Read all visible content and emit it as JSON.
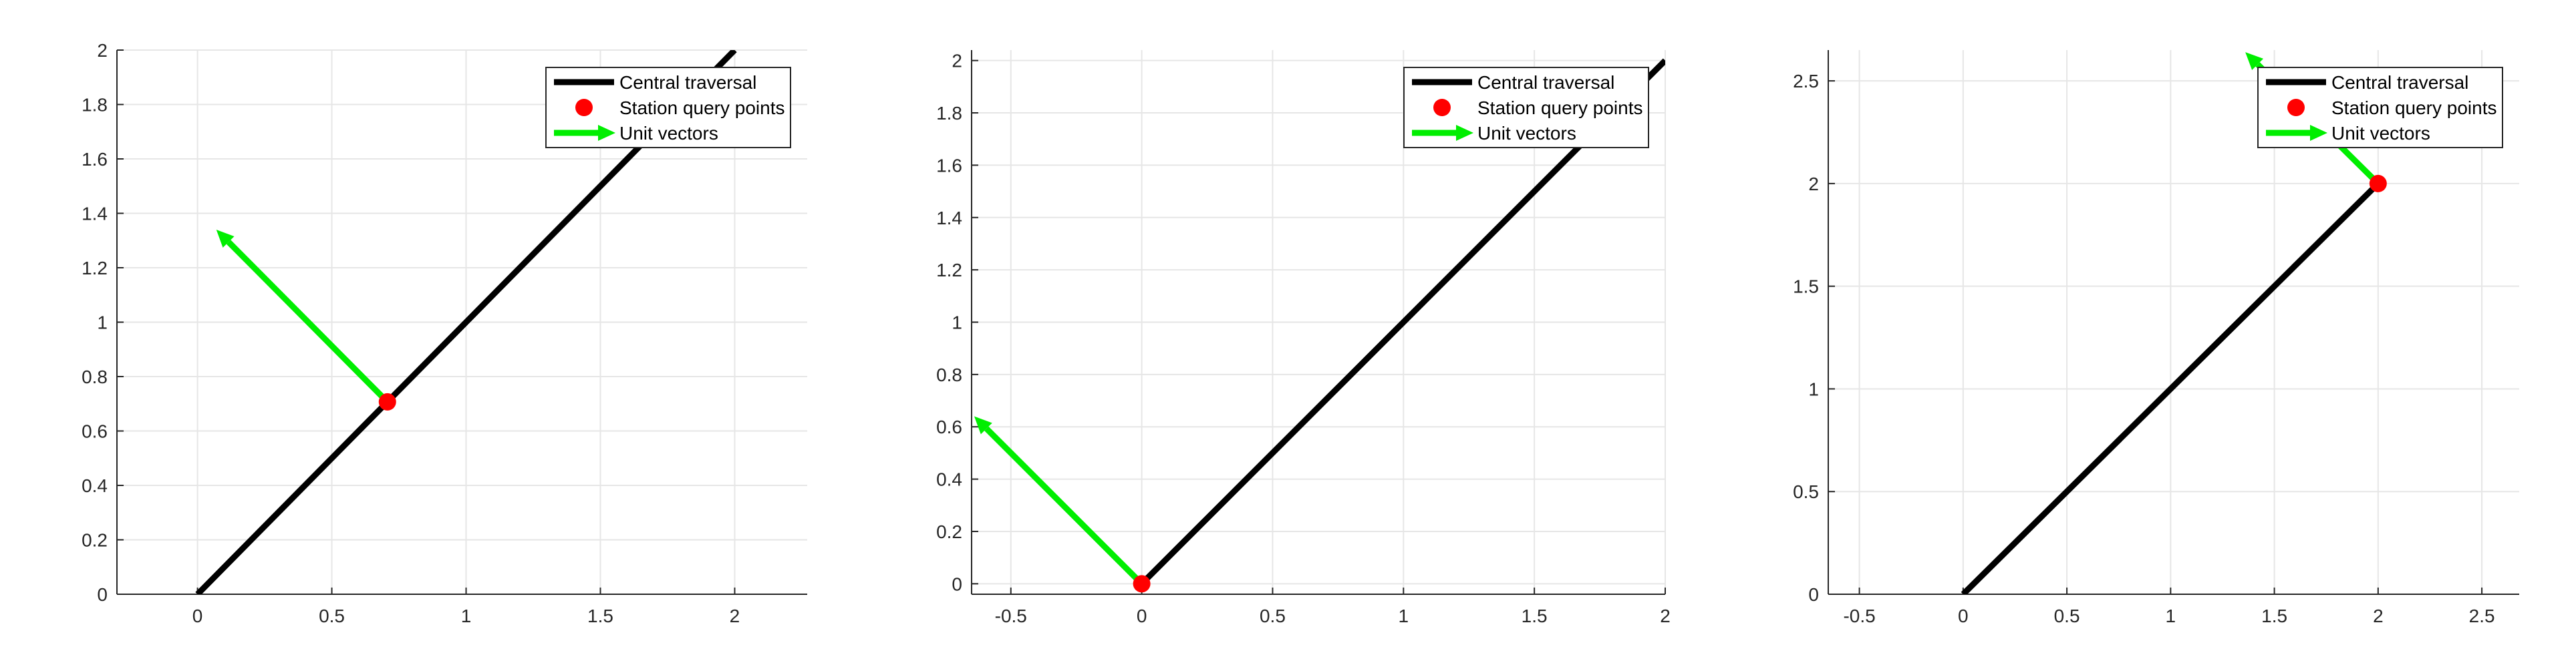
{
  "figure": {
    "panel_count": 3
  },
  "colors": {
    "traversal": "#000000",
    "station": "#ff0000",
    "unit_vector": "#00ee00",
    "grid": "#e6e6e6",
    "axis": "#262626"
  },
  "chart_data": [
    {
      "type": "line",
      "title": "",
      "xlabel": "",
      "ylabel": "",
      "xlim": [
        -0.3,
        2.27
      ],
      "ylim": [
        0,
        2
      ],
      "xticks": [
        0,
        0.5,
        1,
        1.5,
        2
      ],
      "xtick_labels": [
        "0",
        "0.5",
        "1",
        "1.5",
        "2"
      ],
      "yticks": [
        0,
        0.2,
        0.4,
        0.6,
        0.8,
        1,
        1.2,
        1.4,
        1.6,
        1.8,
        2
      ],
      "ytick_labels": [
        "0",
        "0.2",
        "0.4",
        "0.6",
        "0.8",
        "1",
        "1.2",
        "1.4",
        "1.6",
        "1.8",
        "2"
      ],
      "grid": true,
      "legend_position": "top-right",
      "legend": [
        "Central traversal",
        "Station query points",
        "Unit vectors"
      ],
      "series": [
        {
          "name": "Central traversal",
          "kind": "line",
          "x": [
            0,
            2
          ],
          "y": [
            0,
            2
          ]
        },
        {
          "name": "Station query points",
          "kind": "scatter",
          "x": [
            0.707
          ],
          "y": [
            0.707
          ]
        },
        {
          "name": "Unit vectors",
          "kind": "arrow",
          "from": [
            0.707,
            0.707
          ],
          "to": [
            0.07,
            1.34
          ]
        }
      ]
    },
    {
      "type": "line",
      "title": "",
      "xlabel": "",
      "ylabel": "",
      "xlim": [
        -0.65,
        2
      ],
      "ylim": [
        -0.04,
        2.04
      ],
      "xticks": [
        -0.5,
        0,
        0.5,
        1,
        1.5,
        2
      ],
      "xtick_labels": [
        "-0.5",
        "0",
        "0.5",
        "1",
        "1.5",
        "2"
      ],
      "yticks": [
        0,
        0.2,
        0.4,
        0.6,
        0.8,
        1,
        1.2,
        1.4,
        1.6,
        1.8,
        2
      ],
      "ytick_labels": [
        "0",
        "0.2",
        "0.4",
        "0.6",
        "0.8",
        "1",
        "1.2",
        "1.4",
        "1.6",
        "1.8",
        "2"
      ],
      "grid": true,
      "legend_position": "top-right",
      "legend": [
        "Central traversal",
        "Station query points",
        "Unit vectors"
      ],
      "series": [
        {
          "name": "Central traversal",
          "kind": "line",
          "x": [
            0,
            2
          ],
          "y": [
            0,
            2
          ]
        },
        {
          "name": "Station query points",
          "kind": "scatter",
          "x": [
            0
          ],
          "y": [
            0
          ]
        },
        {
          "name": "Unit vectors",
          "kind": "arrow",
          "from": [
            0,
            0
          ],
          "to": [
            -0.64,
            0.64
          ]
        }
      ]
    },
    {
      "type": "line",
      "title": "",
      "xlabel": "",
      "ylabel": "",
      "xlim": [
        -0.65,
        2.68
      ],
      "ylim": [
        0,
        2.65
      ],
      "xticks": [
        -0.5,
        0,
        0.5,
        1,
        1.5,
        2,
        2.5
      ],
      "xtick_labels": [
        "-0.5",
        "0",
        "0.5",
        "1",
        "1.5",
        "2",
        "2.5"
      ],
      "yticks": [
        0,
        0.5,
        1,
        1.5,
        2,
        2.5
      ],
      "ytick_labels": [
        "0",
        "0.5",
        "1",
        "1.5",
        "2",
        "2.5"
      ],
      "grid": true,
      "legend_position": "top-right",
      "legend": [
        "Central traversal",
        "Station query points",
        "Unit vectors"
      ],
      "series": [
        {
          "name": "Central traversal",
          "kind": "line",
          "x": [
            0,
            2
          ],
          "y": [
            0,
            2
          ]
        },
        {
          "name": "Station query points",
          "kind": "scatter",
          "x": [
            2
          ],
          "y": [
            2
          ]
        },
        {
          "name": "Unit vectors",
          "kind": "arrow",
          "from": [
            2,
            2
          ],
          "to": [
            1.36,
            2.64
          ]
        }
      ]
    }
  ]
}
